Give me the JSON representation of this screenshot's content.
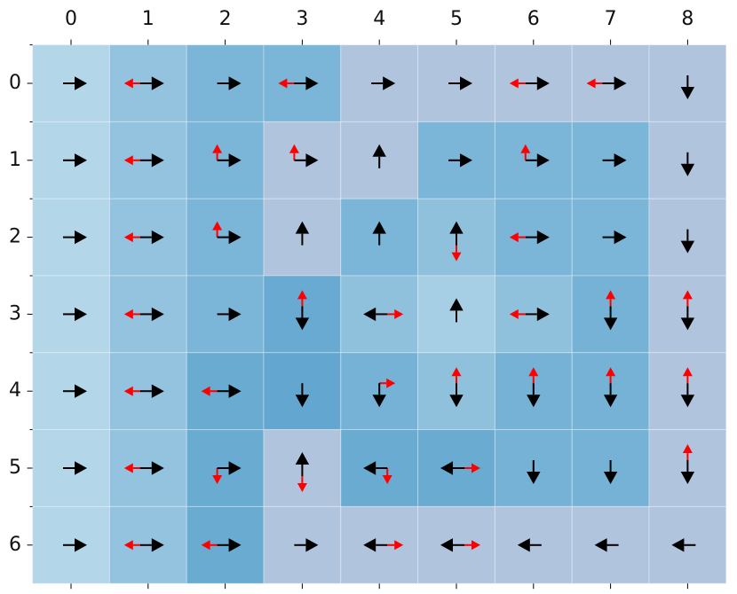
{
  "grid": {
    "columns": [
      "0",
      "1",
      "2",
      "3",
      "4",
      "5",
      "6",
      "7",
      "8"
    ],
    "rows": [
      "0",
      "1",
      "2",
      "3",
      "4",
      "5",
      "6"
    ],
    "black_color": "#000000",
    "red_color": "#ff0000",
    "cells": [
      [
        {
          "fill": "#b3d6e8",
          "black": "right"
        },
        {
          "fill": "#93c3df",
          "black": "right",
          "red": "left"
        },
        {
          "fill": "#7bb5d7",
          "black": "right"
        },
        {
          "fill": "#7bb5d7",
          "black": "right",
          "red": "left"
        },
        {
          "fill": "#b0c4de",
          "black": "right"
        },
        {
          "fill": "#b0c4de",
          "black": "right"
        },
        {
          "fill": "#b0c4de",
          "black": "right",
          "red": "left"
        },
        {
          "fill": "#b0c4de",
          "black": "right",
          "red": "left"
        },
        {
          "fill": "#b0c4de",
          "black": "down"
        }
      ],
      [
        {
          "fill": "#b3d6e8",
          "black": "right"
        },
        {
          "fill": "#93c3df",
          "black": "right",
          "red": "left"
        },
        {
          "fill": "#7bb5d7",
          "black": "right",
          "red": "up"
        },
        {
          "fill": "#b0c4de",
          "black": "right",
          "red": "up"
        },
        {
          "fill": "#b0c4de",
          "black": "up"
        },
        {
          "fill": "#7bb5d7",
          "black": "right"
        },
        {
          "fill": "#7bb5d7",
          "black": "right",
          "red": "up"
        },
        {
          "fill": "#7bb5d7",
          "black": "right"
        },
        {
          "fill": "#b0c4de",
          "black": "down"
        }
      ],
      [
        {
          "fill": "#b3d6e8",
          "black": "right"
        },
        {
          "fill": "#93c3df",
          "black": "right",
          "red": "left"
        },
        {
          "fill": "#7bb5d7",
          "black": "right",
          "red": "up"
        },
        {
          "fill": "#b0c4de",
          "black": "up"
        },
        {
          "fill": "#7bb5d7",
          "black": "up"
        },
        {
          "fill": "#8fc1dd",
          "black": "up",
          "red": "down"
        },
        {
          "fill": "#7bb5d7",
          "black": "right",
          "red": "left"
        },
        {
          "fill": "#7bb5d7",
          "black": "right"
        },
        {
          "fill": "#b0c4de",
          "black": "down"
        }
      ],
      [
        {
          "fill": "#b3d6e8",
          "black": "right"
        },
        {
          "fill": "#93c3df",
          "black": "right",
          "red": "left"
        },
        {
          "fill": "#7bb5d7",
          "black": "right"
        },
        {
          "fill": "#69aad2",
          "black": "down",
          "red": "up"
        },
        {
          "fill": "#8fc1dd",
          "black": "left",
          "red": "right"
        },
        {
          "fill": "#a6cee4",
          "black": "up"
        },
        {
          "fill": "#8fc1dd",
          "black": "right",
          "red": "left"
        },
        {
          "fill": "#76b2d6",
          "black": "down",
          "red": "up"
        },
        {
          "fill": "#b0c4de",
          "black": "down",
          "red": "up"
        }
      ],
      [
        {
          "fill": "#b3d6e8",
          "black": "right"
        },
        {
          "fill": "#93c3df",
          "black": "right",
          "red": "left"
        },
        {
          "fill": "#6aabd2",
          "black": "right",
          "red": "left"
        },
        {
          "fill": "#63a6d0",
          "black": "down"
        },
        {
          "fill": "#76b2d6",
          "black": "down",
          "red": "right"
        },
        {
          "fill": "#8fc1dd",
          "black": "down",
          "red": "up"
        },
        {
          "fill": "#76b2d6",
          "black": "down",
          "red": "up"
        },
        {
          "fill": "#76b2d6",
          "black": "down",
          "red": "up"
        },
        {
          "fill": "#b0c4de",
          "black": "down",
          "red": "up"
        }
      ],
      [
        {
          "fill": "#b3d6e8",
          "black": "right"
        },
        {
          "fill": "#93c3df",
          "black": "right",
          "red": "left"
        },
        {
          "fill": "#6aabd2",
          "black": "right",
          "red": "down"
        },
        {
          "fill": "#b0c4de",
          "black": "up",
          "red": "down"
        },
        {
          "fill": "#6aabd2",
          "black": "left",
          "red": "down"
        },
        {
          "fill": "#6aabd2",
          "black": "left",
          "red": "right"
        },
        {
          "fill": "#76b2d6",
          "black": "down"
        },
        {
          "fill": "#76b2d6",
          "black": "down"
        },
        {
          "fill": "#b0c4de",
          "black": "down",
          "red": "up"
        }
      ],
      [
        {
          "fill": "#b3d6e8",
          "black": "right"
        },
        {
          "fill": "#93c3df",
          "black": "right",
          "red": "left"
        },
        {
          "fill": "#6aabd2",
          "black": "right",
          "red": "left"
        },
        {
          "fill": "#b0c4de",
          "black": "right"
        },
        {
          "fill": "#b0c4de",
          "black": "left",
          "red": "right"
        },
        {
          "fill": "#b0c4de",
          "black": "left",
          "red": "right"
        },
        {
          "fill": "#b0c4de",
          "black": "left"
        },
        {
          "fill": "#b0c4de",
          "black": "left"
        },
        {
          "fill": "#b0c4de",
          "black": "left"
        }
      ]
    ]
  }
}
